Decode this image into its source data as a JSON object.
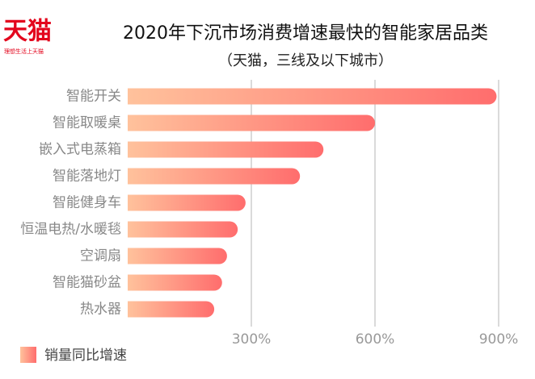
{
  "logo": {
    "text": "天猫",
    "slogan": "理想生活上天猫"
  },
  "chart_data": {
    "type": "hbar",
    "title": "2020年下沉市场消费增速最快的智能家居品类",
    "subtitle": "（天猫，三线及以下城市）",
    "categories": [
      "智能开关",
      "智能取暖桌",
      "嵌入式电蒸箱",
      "智能落地灯",
      "智能健身车",
      "恒温电热/水暖毯",
      "空调扇",
      "智能猫砂盆",
      "热水器"
    ],
    "series": [
      {
        "name": "销量同比增速",
        "gradient": [
          "#ffc29c",
          "#ff6d6d"
        ],
        "values": [
          895,
          600,
          475,
          418,
          286,
          267,
          241,
          229,
          210
        ]
      }
    ],
    "xlim": [
      0,
      900
    ],
    "xticks": [
      {
        "value": 300,
        "label": "300%"
      },
      {
        "value": 600,
        "label": "600%"
      },
      {
        "value": 900,
        "label": "900%"
      }
    ],
    "grid": true,
    "legend": "bottom-left"
  }
}
